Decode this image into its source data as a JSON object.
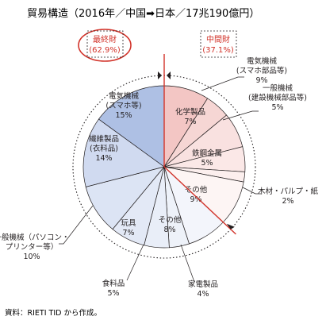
{
  "chart_data": {
    "type": "pie",
    "title": "貿易構造（2016年／中国➡日本／17兆190億円）",
    "source": "資料：RIETI TID から作成。",
    "groups": [
      {
        "name": "最終財",
        "value_label": "(62.9%)",
        "value": 62.9,
        "color": "#d2342b"
      },
      {
        "name": "中間財",
        "value_label": "(37.1%)",
        "value": 37.1,
        "color": "#d2342b"
      }
    ],
    "slices": [
      {
        "name": "電気機械",
        "sub": "(スマホ部品等)",
        "value": 9,
        "pct": "9%",
        "group": "中間財",
        "color": "#f3c6c4",
        "label_pos": "outside"
      },
      {
        "name": "一般機械",
        "sub": "(建設機械部品等)",
        "value": 5,
        "pct": "5%",
        "group": "中間財",
        "color": "#f6d6d4",
        "label_pos": "outside"
      },
      {
        "name": "化学製品",
        "value": 7,
        "pct": "7%",
        "group": "中間財",
        "color": "#f9e1e0",
        "label_pos": "inside"
      },
      {
        "name": "鉄鋼金属",
        "value": 5,
        "pct": "5%",
        "group": "中間財",
        "color": "#fbe8e7",
        "label_pos": "inside"
      },
      {
        "name": "木材・パルプ・紙",
        "value": 2,
        "pct": "2%",
        "group": "中間財",
        "color": "#fcefee",
        "label_pos": "outside"
      },
      {
        "name": "その他",
        "value": 9,
        "pct": "9%",
        "group": "中間財",
        "color": "#fdf5f4",
        "label_pos": "inside"
      },
      {
        "name": "その他",
        "value": 8,
        "pct": "8%",
        "group": "最終財",
        "color": "#f3f5fb",
        "label_pos": "inside"
      },
      {
        "name": "家電製品",
        "value": 4,
        "pct": "4%",
        "group": "最終財",
        "color": "#eef2f9",
        "label_pos": "outside"
      },
      {
        "name": "食料品",
        "value": 5,
        "pct": "5%",
        "group": "最終財",
        "color": "#e9eef8",
        "label_pos": "outside"
      },
      {
        "name": "玩具",
        "value": 7,
        "pct": "7%",
        "group": "最終財",
        "color": "#e3e9f6",
        "label_pos": "inside"
      },
      {
        "name": "一般機械（パソコン・",
        "sub": "プリンター等）",
        "value": 10,
        "pct": "10%",
        "group": "最終財",
        "color": "#dce4f4",
        "label_pos": "outside"
      },
      {
        "name": "繊維製品",
        "sub": "(衣料品)",
        "value": 14,
        "pct": "14%",
        "group": "最終財",
        "color": "#d0daf0",
        "label_pos": "inside"
      },
      {
        "name": "電気機械",
        "sub": "(スマホ等)",
        "value": 15,
        "pct": "15%",
        "group": "最終財",
        "color": "#aec0e4",
        "label_pos": "inside"
      }
    ]
  }
}
